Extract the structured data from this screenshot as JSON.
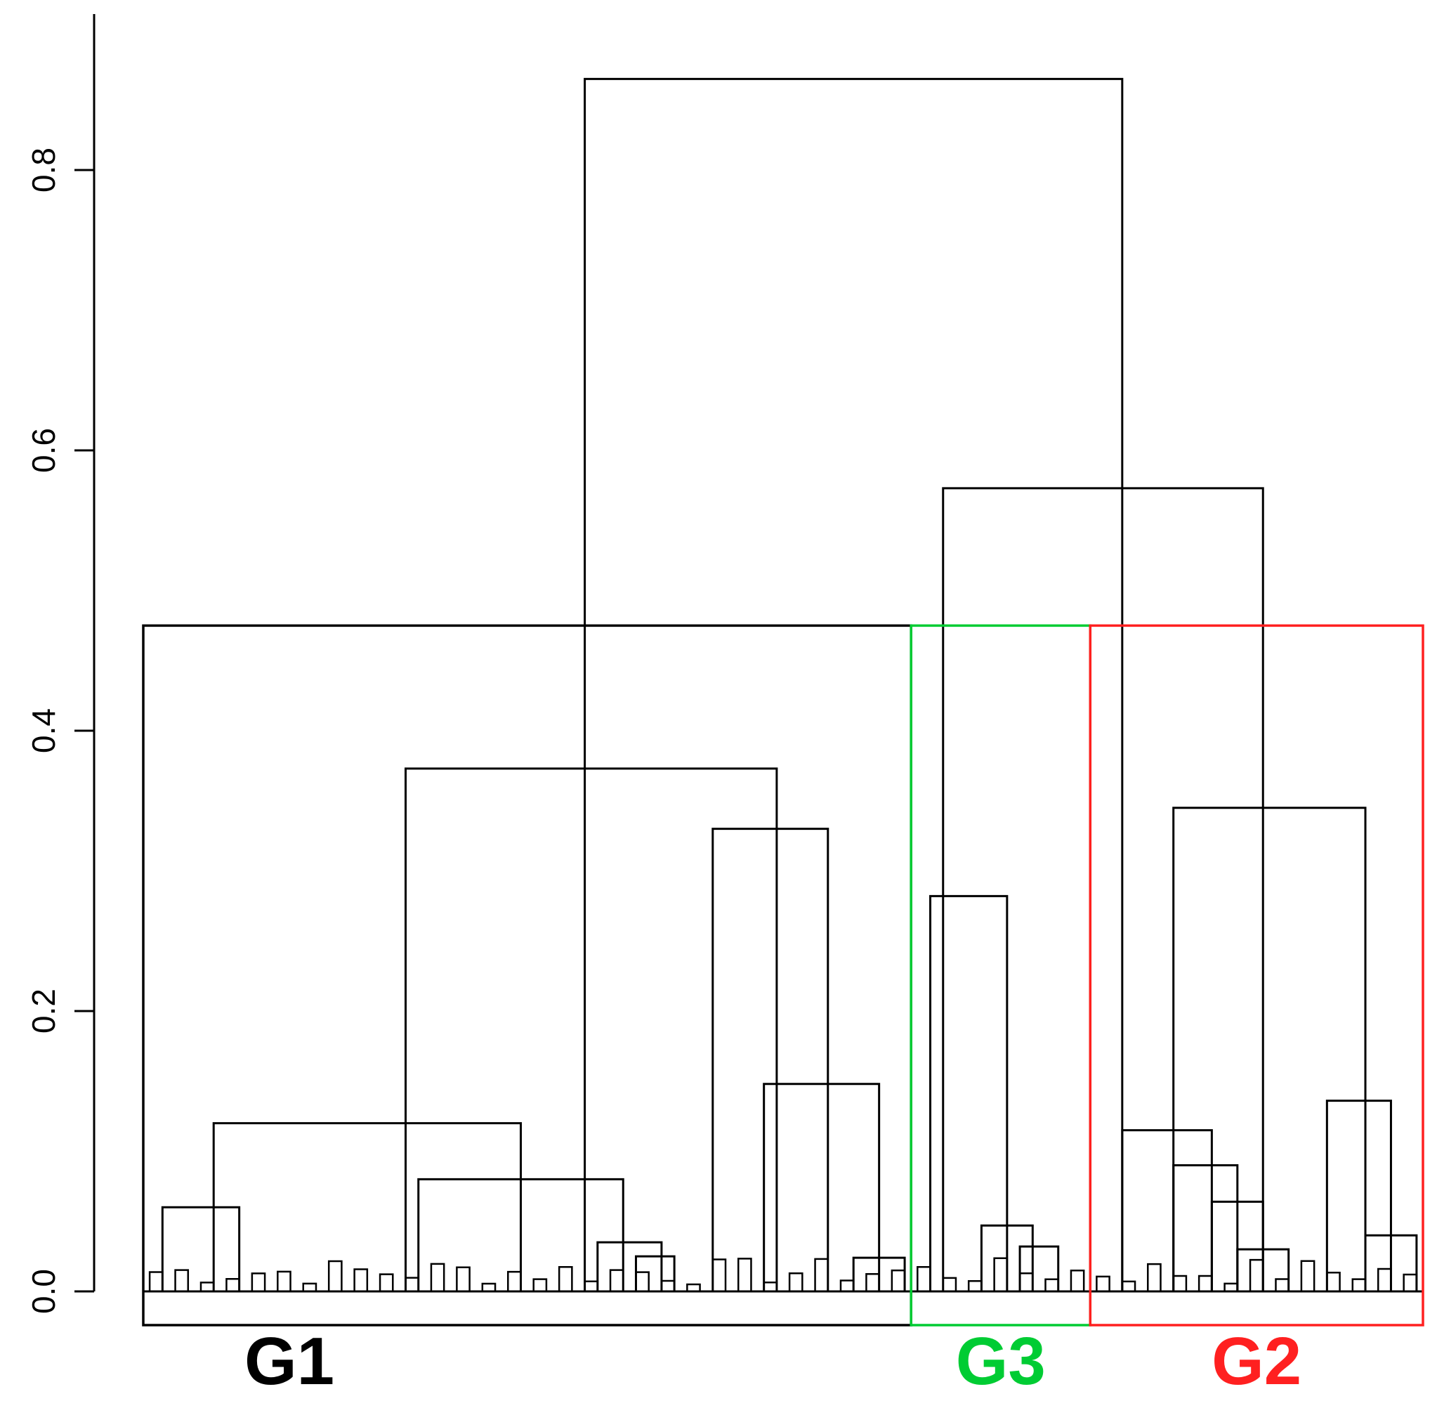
{
  "chart_data": {
    "type": "dendrogram",
    "title": "",
    "xlabel": "",
    "ylabel": "",
    "ylim": [
      0,
      0.9
    ],
    "y_ticks": [
      {
        "value": 0.0,
        "label": "0.0"
      },
      {
        "value": 0.2,
        "label": "0.2"
      },
      {
        "value": 0.4,
        "label": "0.4"
      },
      {
        "value": 0.6,
        "label": "0.6"
      },
      {
        "value": 0.8,
        "label": "0.8"
      }
    ],
    "leaf_count": 100,
    "merges": [
      {
        "id": "root",
        "height": 0.865,
        "left_leaf": 34,
        "right_leaf": 76
      },
      {
        "id": "g1-split",
        "height": 0.373,
        "left_leaf": 20,
        "right_leaf": 49
      },
      {
        "id": "g1-left",
        "height": 0.12,
        "left_leaf": 5,
        "right_leaf": 29
      },
      {
        "id": "g1-left-a",
        "height": 0.06,
        "left_leaf": 1,
        "right_leaf": 7
      },
      {
        "id": "g1-left-b",
        "height": 0.08,
        "left_leaf": 21,
        "right_leaf": 37
      },
      {
        "id": "g1-left-b2",
        "height": 0.035,
        "left_leaf": 35,
        "right_leaf": 40
      },
      {
        "id": "g1-left-b3",
        "height": 0.025,
        "left_leaf": 38,
        "right_leaf": 41
      },
      {
        "id": "g1-right",
        "height": 0.33,
        "left_leaf": 44,
        "right_leaf": 53
      },
      {
        "id": "g1-right-b",
        "height": 0.148,
        "left_leaf": 48,
        "right_leaf": 57
      },
      {
        "id": "g1-right-b2",
        "height": 0.024,
        "left_leaf": 55,
        "right_leaf": 59
      },
      {
        "id": "g23-split",
        "height": 0.573,
        "left_leaf": 62,
        "right_leaf": 87
      },
      {
        "id": "g3",
        "height": 0.282,
        "left_leaf": 61,
        "right_leaf": 67
      },
      {
        "id": "g3-b",
        "height": 0.047,
        "left_leaf": 65,
        "right_leaf": 69
      },
      {
        "id": "g3-b2",
        "height": 0.032,
        "left_leaf": 68,
        "right_leaf": 71
      },
      {
        "id": "g2",
        "height": 0.345,
        "left_leaf": 80,
        "right_leaf": 95
      },
      {
        "id": "g2-a",
        "height": 0.115,
        "left_leaf": 76,
        "right_leaf": 83
      },
      {
        "id": "g2-a2",
        "height": 0.09,
        "left_leaf": 80,
        "right_leaf": 85
      },
      {
        "id": "g2-a3",
        "height": 0.064,
        "left_leaf": 83,
        "right_leaf": 87
      },
      {
        "id": "g2-a4",
        "height": 0.03,
        "left_leaf": 85,
        "right_leaf": 89
      },
      {
        "id": "g2-b",
        "height": 0.136,
        "left_leaf": 92,
        "right_leaf": 97
      },
      {
        "id": "g2-b2",
        "height": 0.04,
        "left_leaf": 95,
        "right_leaf": 99
      }
    ],
    "groups": [
      {
        "name": "G1",
        "label": "G1",
        "color": "#000000",
        "leaf_start": 0,
        "leaf_end": 60
      },
      {
        "name": "G3",
        "label": "G3",
        "color": "#00cc33",
        "leaf_start": 60,
        "leaf_end": 74
      },
      {
        "name": "G2",
        "label": "G2",
        "color": "#ff2020",
        "leaf_start": 74,
        "leaf_end": 100
      }
    ],
    "cut_height": 0.475
  }
}
